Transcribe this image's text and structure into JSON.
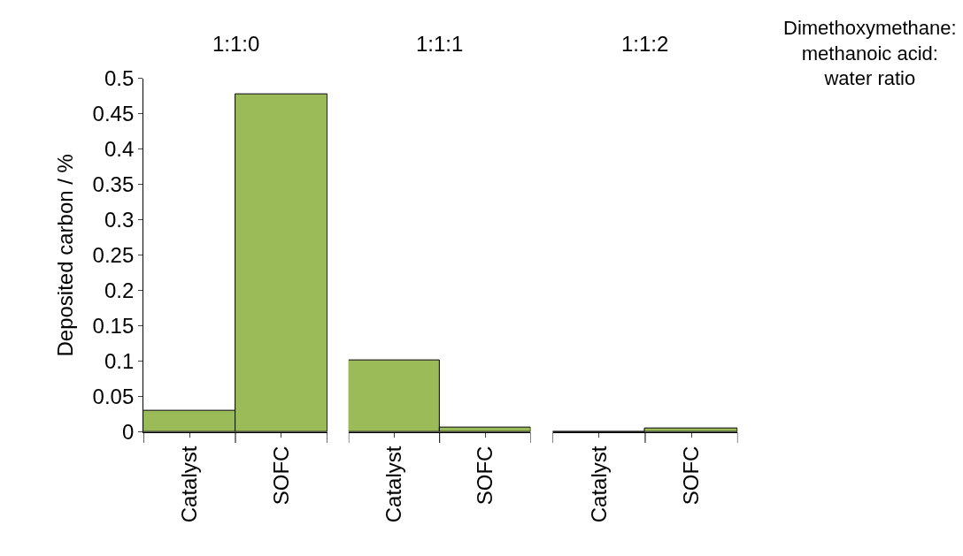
{
  "chart_data": [
    {
      "type": "bar",
      "title": "1:1:0",
      "ylabel": "Deposited carbon / %",
      "categories": [
        "Catalyst",
        "SOFC"
      ],
      "values": [
        0.03,
        0.477
      ],
      "color": "#9bbb59",
      "ylim": [
        0,
        0.5
      ],
      "yticks": [
        0,
        0.05,
        0.1,
        0.15,
        0.2,
        0.25,
        0.3,
        0.35,
        0.4,
        0.45,
        0.5
      ]
    },
    {
      "type": "bar",
      "title": "1:1:1",
      "categories": [
        "Catalyst",
        "SOFC"
      ],
      "values": [
        0.101,
        0.007
      ],
      "color": "#9bbb59",
      "ylim": [
        0,
        0.5
      ],
      "tick_labels": "x"
    },
    {
      "type": "bar",
      "title": "1:1:2",
      "categories": [
        "Catalyst",
        "SOFC"
      ],
      "values": [
        0.001,
        0.005
      ],
      "color": "#9bbb59",
      "ylim": [
        0,
        0.5
      ],
      "tick_labels": "x",
      "annotations": [
        "Dimethoxymethane:\nmethanoic acid:\nwater ratio"
      ]
    }
  ]
}
